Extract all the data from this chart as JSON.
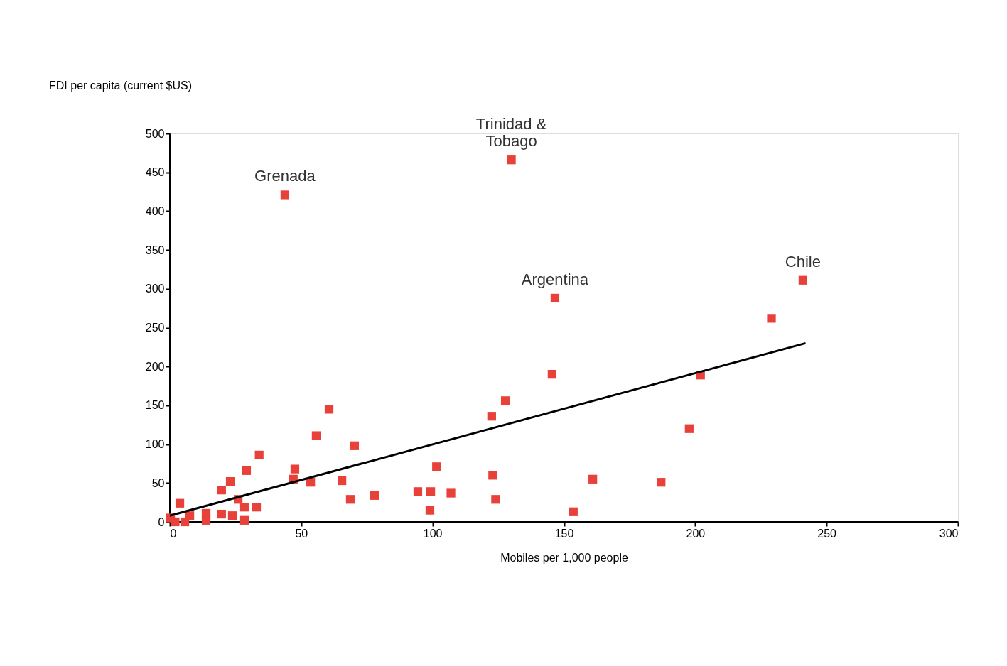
{
  "chart_data": {
    "type": "scatter",
    "xlabel": "Mobiles per 1,000 people",
    "ylabel": "FDI per capita (current $US)",
    "xlim": [
      0,
      300
    ],
    "xticks": [
      0,
      50,
      100,
      150,
      200,
      250,
      300
    ],
    "ylim": [
      0,
      500
    ],
    "yticks": [
      0,
      50,
      100,
      150,
      200,
      250,
      300,
      350,
      400,
      450,
      500
    ],
    "grid": false,
    "marker": "square",
    "series": [
      {
        "color": "#e8413a",
        "x": [
          43.8,
          130,
          146.6,
          241,
          229,
          145.5,
          202,
          127.7,
          122.5,
          197.7,
          60.6,
          55.7,
          70.3,
          34,
          101.5,
          122.9,
          161,
          187,
          47.6,
          29.2,
          23,
          65.5,
          47,
          53.6,
          19.7,
          94.4,
          99.3,
          107,
          77.9,
          68.7,
          124,
          99,
          153.6,
          33,
          28.4,
          3.8,
          26,
          13.8,
          13.8,
          23.8,
          28.4,
          5.7,
          7.6,
          0.3,
          2,
          19.7
        ],
        "values": [
          421,
          466,
          288,
          311,
          262,
          190,
          189,
          156,
          136,
          120,
          145,
          111,
          98,
          86,
          71,
          60,
          55,
          51,
          68,
          66,
          52,
          53,
          55,
          51,
          41,
          39,
          39,
          37,
          34,
          29,
          29,
          15,
          13,
          19,
          19,
          24,
          29,
          11,
          2,
          8,
          2,
          0,
          8,
          5,
          0,
          10
        ]
      },
      {
        "type": "line",
        "color": "#000000",
        "marker": "none",
        "line_style": "solid",
        "x": [
          0,
          242
        ],
        "values": [
          8,
          230
        ]
      }
    ],
    "annotations": [
      {
        "text": "Grenada",
        "x": 43.8,
        "y": 421
      },
      {
        "text": "Trinidad &\nTobago",
        "x": 130,
        "y": 466
      },
      {
        "text": "Argentina",
        "x": 146.6,
        "y": 288
      },
      {
        "text": "Chile",
        "x": 241,
        "y": 311
      }
    ]
  }
}
